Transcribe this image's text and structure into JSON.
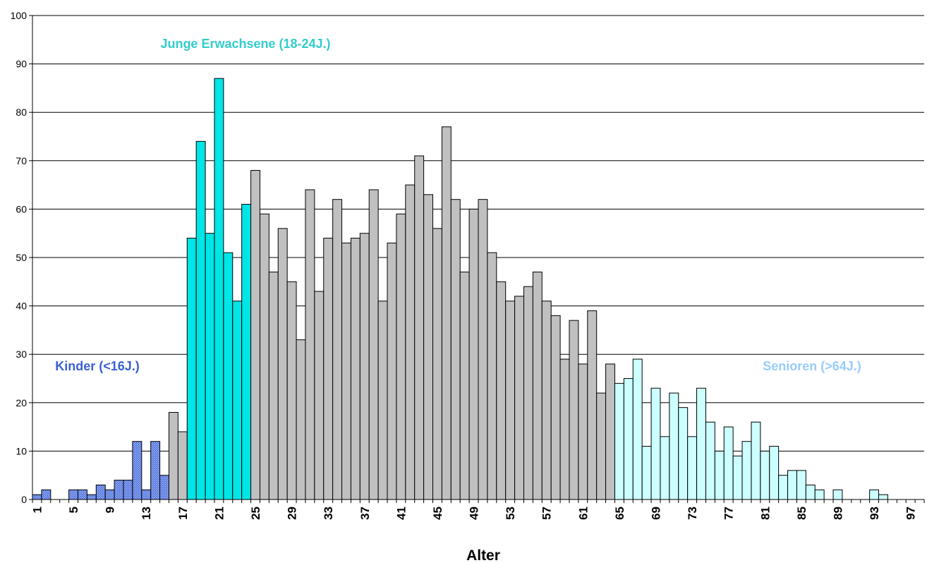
{
  "chart_data": {
    "type": "bar",
    "title": "",
    "xlabel": "Alter",
    "ylabel": "",
    "ylim": [
      0,
      100
    ],
    "yticks": [
      0,
      10,
      20,
      30,
      40,
      50,
      60,
      70,
      80,
      90,
      100
    ],
    "grid": "horizontal",
    "x": [
      1,
      2,
      3,
      4,
      5,
      6,
      7,
      8,
      9,
      10,
      11,
      12,
      13,
      14,
      15,
      16,
      17,
      18,
      19,
      20,
      21,
      22,
      23,
      24,
      25,
      26,
      27,
      28,
      29,
      30,
      31,
      32,
      33,
      34,
      35,
      36,
      37,
      38,
      39,
      40,
      41,
      42,
      43,
      44,
      45,
      46,
      47,
      48,
      49,
      50,
      51,
      52,
      53,
      54,
      55,
      56,
      57,
      58,
      59,
      60,
      61,
      62,
      63,
      64,
      65,
      66,
      67,
      68,
      69,
      70,
      71,
      72,
      73,
      74,
      75,
      76,
      77,
      78,
      79,
      80,
      81,
      82,
      83,
      84,
      85,
      86,
      87,
      88,
      89,
      90,
      91,
      92,
      93,
      94,
      95,
      96,
      97,
      98
    ],
    "xtick_labels": [
      "1",
      "5",
      "9",
      "13",
      "17",
      "21",
      "25",
      "29",
      "33",
      "37",
      "41",
      "45",
      "49",
      "53",
      "57",
      "61",
      "65",
      "69",
      "73",
      "77",
      "81",
      "85",
      "89",
      "93",
      "97"
    ],
    "values": [
      1,
      2,
      0,
      0,
      2,
      2,
      1,
      3,
      2,
      4,
      4,
      12,
      2,
      12,
      5,
      18,
      14,
      54,
      74,
      55,
      87,
      51,
      41,
      61,
      68,
      59,
      47,
      56,
      45,
      33,
      64,
      43,
      54,
      62,
      53,
      54,
      55,
      64,
      41,
      53,
      59,
      65,
      71,
      63,
      56,
      77,
      62,
      47,
      60,
      62,
      51,
      45,
      41,
      42,
      44,
      47,
      41,
      38,
      29,
      37,
      28,
      39,
      22,
      28,
      24,
      25,
      29,
      11,
      23,
      13,
      22,
      19,
      13,
      23,
      16,
      10,
      15,
      9,
      12,
      16,
      10,
      11,
      5,
      6,
      6,
      3,
      2,
      0,
      2,
      0,
      0,
      0,
      2,
      1,
      0,
      0,
      0,
      0
    ],
    "groups": [
      {
        "label": "Kinder (<16J.)",
        "from": 1,
        "to": 15,
        "color": "#3a5fd9",
        "text_color": "#3a5fd9",
        "pattern": "crosshatch"
      },
      {
        "label": "",
        "from": 16,
        "to": 17,
        "color": "#c0c0c0"
      },
      {
        "label": "Junge Erwachsene (18-24J.)",
        "from": 18,
        "to": 24,
        "color": "#00e5e5",
        "text_color": "#33cccc"
      },
      {
        "label": "",
        "from": 25,
        "to": 64,
        "color": "#c0c0c0"
      },
      {
        "label": "Senioren (>64J.)",
        "from": 65,
        "to": 98,
        "color": "#ccffff",
        "text_color": "#99ccff"
      }
    ]
  }
}
